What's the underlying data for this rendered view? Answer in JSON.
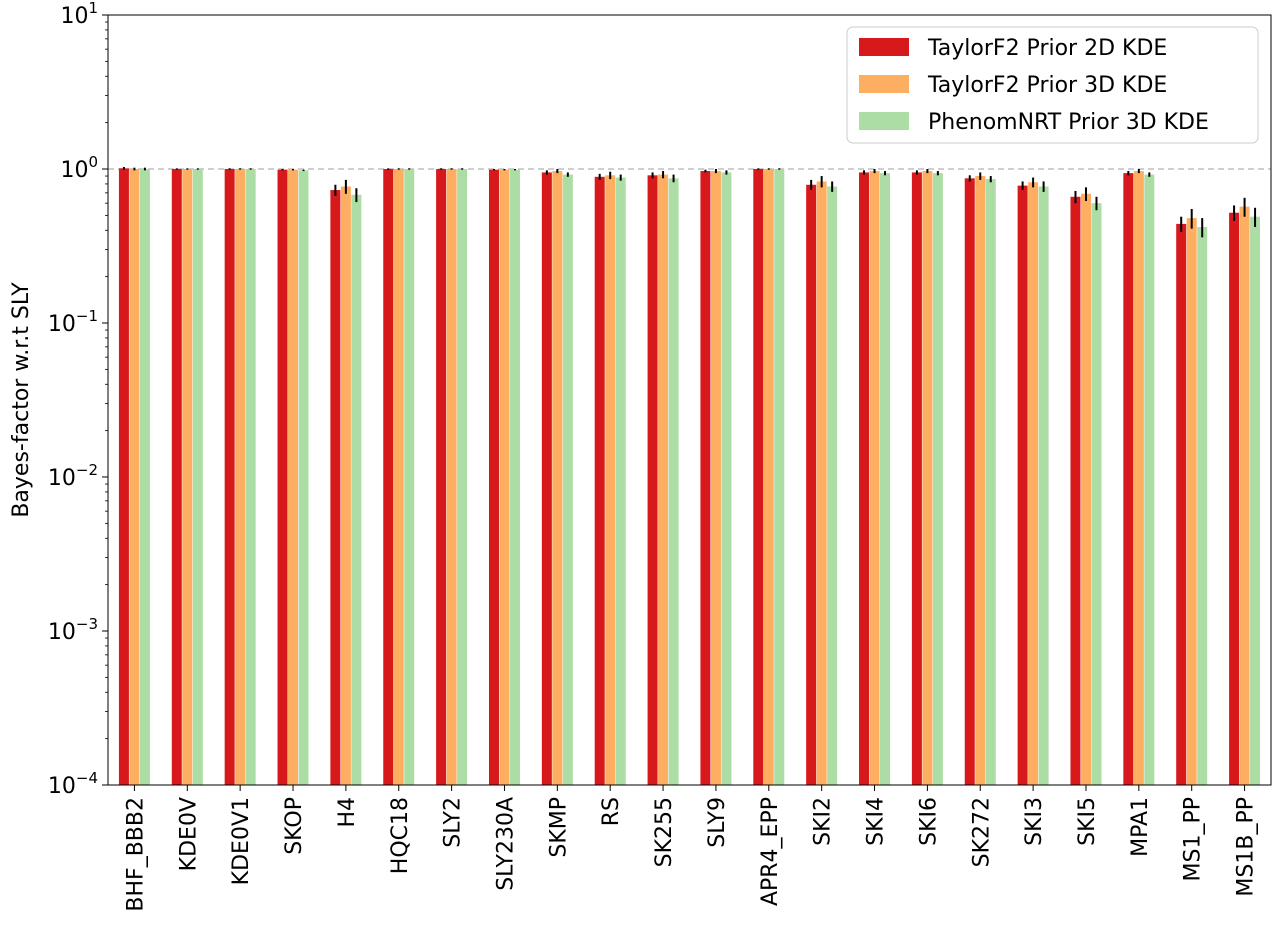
{
  "chart_data": {
    "type": "bar",
    "ylabel": "Bayes-factor w.r.t SLY",
    "yscale": "log",
    "ylim": [
      0.0001,
      10
    ],
    "ytick_labels": [
      {
        "base": "10",
        "exp": "−4",
        "value": 0.0001
      },
      {
        "base": "10",
        "exp": "−3",
        "value": 0.001
      },
      {
        "base": "10",
        "exp": "−2",
        "value": 0.01
      },
      {
        "base": "10",
        "exp": "−1",
        "value": 0.1
      },
      {
        "base": "10",
        "exp": "0",
        "value": 1
      },
      {
        "base": "10",
        "exp": "1",
        "value": 10
      }
    ],
    "reference_line": {
      "value": 1,
      "style": "dashed",
      "color": "#bfbfbf"
    },
    "legend_position": "top-right",
    "categories": [
      "BHF_BBB2",
      "KDE0V",
      "KDE0V1",
      "SKOP",
      "H4",
      "HQC18",
      "SLY2",
      "SLY230A",
      "SKMP",
      "RS",
      "SK255",
      "SLY9",
      "APR4_EPP",
      "SKI2",
      "SKI4",
      "SKI6",
      "SK272",
      "SKI3",
      "SKI5",
      "MPA1",
      "MS1_PP",
      "MS1B_PP"
    ],
    "series": [
      {
        "name": "TaylorF2 Prior 2D KDE",
        "color": "#d7191c",
        "values": [
          1.01,
          1.0,
          1.0,
          0.99,
          0.73,
          1.0,
          1.0,
          0.99,
          0.95,
          0.89,
          0.91,
          0.97,
          1.0,
          0.79,
          0.95,
          0.95,
          0.87,
          0.78,
          0.66,
          0.94,
          0.44,
          0.52
        ],
        "errors": [
          0.02,
          0.01,
          0.01,
          0.01,
          0.06,
          0.01,
          0.01,
          0.01,
          0.03,
          0.04,
          0.04,
          0.02,
          0.01,
          0.06,
          0.03,
          0.03,
          0.04,
          0.05,
          0.06,
          0.03,
          0.05,
          0.06
        ]
      },
      {
        "name": "TaylorF2 Prior 3D KDE",
        "color": "#fdae61",
        "values": [
          1.0,
          1.0,
          1.0,
          0.99,
          0.77,
          1.0,
          1.0,
          0.99,
          0.97,
          0.91,
          0.92,
          0.97,
          1.0,
          0.83,
          0.97,
          0.97,
          0.9,
          0.82,
          0.69,
          0.97,
          0.48,
          0.57
        ],
        "errors": [
          0.02,
          0.01,
          0.01,
          0.01,
          0.08,
          0.01,
          0.01,
          0.01,
          0.03,
          0.05,
          0.05,
          0.03,
          0.01,
          0.07,
          0.03,
          0.03,
          0.05,
          0.06,
          0.07,
          0.03,
          0.07,
          0.08
        ]
      },
      {
        "name": "PhenomNRT Prior 3D KDE",
        "color": "#abdda4",
        "values": [
          1.0,
          1.0,
          1.0,
          0.98,
          0.68,
          1.0,
          1.0,
          0.99,
          0.92,
          0.88,
          0.87,
          0.95,
          1.0,
          0.77,
          0.94,
          0.94,
          0.86,
          0.77,
          0.6,
          0.92,
          0.42,
          0.49
        ],
        "errors": [
          0.02,
          0.01,
          0.01,
          0.01,
          0.07,
          0.01,
          0.01,
          0.01,
          0.03,
          0.04,
          0.05,
          0.03,
          0.01,
          0.06,
          0.03,
          0.03,
          0.04,
          0.06,
          0.06,
          0.03,
          0.06,
          0.07
        ]
      }
    ]
  }
}
